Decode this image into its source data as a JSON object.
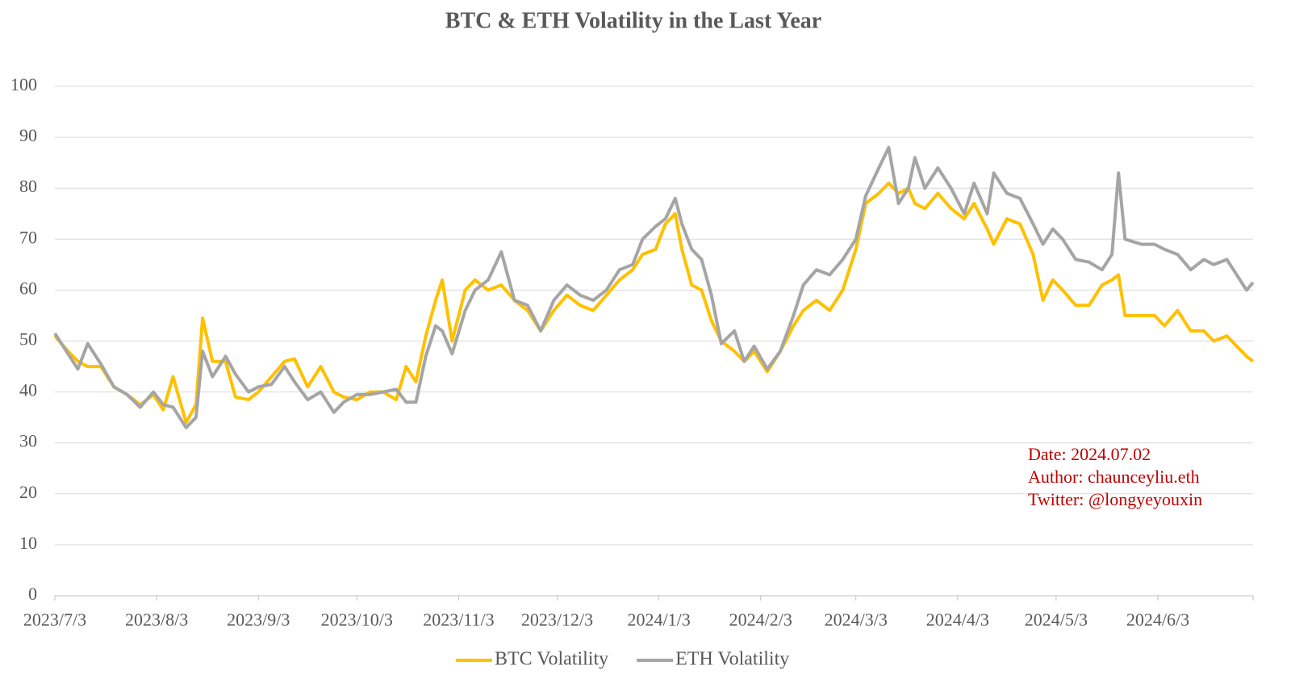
{
  "chart_data": {
    "type": "line",
    "title": "BTC & ETH Volatility in the Last Year",
    "x": [
      "2023/7/3",
      "2023/7/7",
      "2023/7/10",
      "2023/7/13",
      "2023/7/17",
      "2023/7/21",
      "2023/7/25",
      "2023/7/29",
      "2023/8/2",
      "2023/8/5",
      "2023/8/8",
      "2023/8/12",
      "2023/8/15",
      "2023/8/17",
      "2023/8/20",
      "2023/8/24",
      "2023/8/27",
      "2023/8/31",
      "2023/9/3",
      "2023/9/7",
      "2023/9/11",
      "2023/9/14",
      "2023/9/18",
      "2023/9/22",
      "2023/9/26",
      "2023/9/29",
      "2023/10/3",
      "2023/10/7",
      "2023/10/11",
      "2023/10/15",
      "2023/10/18",
      "2023/10/21",
      "2023/10/24",
      "2023/10/27",
      "2023/10/29",
      "2023/11/1",
      "2023/11/5",
      "2023/11/8",
      "2023/11/12",
      "2023/11/16",
      "2023/11/20",
      "2023/11/24",
      "2023/11/28",
      "2023/12/2",
      "2023/12/6",
      "2023/12/10",
      "2023/12/14",
      "2023/12/18",
      "2023/12/22",
      "2023/12/26",
      "2023/12/29",
      "2024/1/2",
      "2024/1/5",
      "2024/1/8",
      "2024/1/10",
      "2024/1/13",
      "2024/1/16",
      "2024/1/19",
      "2024/1/22",
      "2024/1/26",
      "2024/1/29",
      "2024/2/1",
      "2024/2/5",
      "2024/2/9",
      "2024/2/13",
      "2024/2/16",
      "2024/2/20",
      "2024/2/24",
      "2024/2/28",
      "2024/3/3",
      "2024/3/6",
      "2024/3/10",
      "2024/3/13",
      "2024/3/16",
      "2024/3/19",
      "2024/3/21",
      "2024/3/24",
      "2024/3/28",
      "2024/4/1",
      "2024/4/5",
      "2024/4/8",
      "2024/4/12",
      "2024/4/14",
      "2024/4/18",
      "2024/4/22",
      "2024/4/26",
      "2024/4/29",
      "2024/5/2",
      "2024/5/5",
      "2024/5/9",
      "2024/5/13",
      "2024/5/17",
      "2024/5/20",
      "2024/5/22",
      "2024/5/24",
      "2024/5/29",
      "2024/6/2",
      "2024/6/5",
      "2024/6/9",
      "2024/6/13",
      "2024/6/17",
      "2024/6/20",
      "2024/6/24",
      "2024/6/27",
      "2024/6/30",
      "2024/7/2"
    ],
    "series": [
      {
        "name": "BTC Volatility",
        "color": "#ffc000",
        "values": [
          51,
          48,
          46,
          45,
          45,
          41,
          39.5,
          37.5,
          39.5,
          36.5,
          43,
          34,
          37.5,
          54.5,
          46,
          46,
          39,
          38.5,
          40,
          43,
          46,
          46.5,
          41,
          45,
          40,
          39,
          38.5,
          40,
          40,
          38.5,
          45,
          42,
          51,
          58,
          62,
          50,
          60,
          62,
          60,
          61,
          58,
          56,
          52,
          56,
          59,
          57,
          56,
          59,
          62,
          64,
          67,
          68,
          73,
          75,
          68,
          61,
          60,
          54,
          50,
          48,
          46,
          48,
          44,
          48,
          53,
          56,
          58,
          56,
          60,
          68,
          77,
          79,
          81,
          79,
          80,
          77,
          76,
          79,
          76,
          74,
          77,
          72,
          69,
          74,
          73,
          67,
          58,
          62,
          60,
          57,
          57,
          61,
          62,
          63,
          55,
          55,
          55,
          53,
          56,
          52,
          52,
          50,
          51,
          49,
          47,
          46
        ]
      },
      {
        "name": "ETH Volatility",
        "color": "#a5a5a5",
        "values": [
          51.5,
          47.5,
          44.5,
          49.5,
          45.5,
          41,
          39.5,
          37,
          40,
          37.5,
          37,
          33,
          35,
          48,
          43,
          47,
          43.5,
          40,
          41,
          41.5,
          45,
          42,
          38.5,
          40,
          36,
          38,
          39.5,
          39.5,
          40,
          40.5,
          38,
          38,
          47,
          53,
          52,
          47.5,
          56,
          60,
          62,
          67.5,
          58,
          57,
          52,
          58,
          61,
          59,
          58,
          60,
          64,
          65,
          70,
          72.5,
          74,
          78,
          73,
          68,
          66,
          59,
          49.5,
          52,
          46,
          49,
          44.5,
          48,
          55,
          61,
          64,
          63,
          66,
          70,
          78.5,
          84,
          88,
          77,
          80,
          86,
          80,
          84,
          80,
          75,
          81,
          75,
          83,
          79,
          78,
          73,
          69,
          72,
          70,
          66,
          65.5,
          64,
          67,
          83,
          70,
          69,
          69,
          68,
          67,
          64,
          66,
          65,
          66,
          63,
          60,
          61.5
        ]
      }
    ],
    "xlim": [
      "2023/7/3",
      "2024/7/2"
    ],
    "xticks": [
      "2023/7/3",
      "2023/8/3",
      "2023/9/3",
      "2023/10/3",
      "2023/11/3",
      "2023/12/3",
      "2024/1/3",
      "2024/2/3",
      "2024/3/3",
      "2024/4/3",
      "2024/5/3",
      "2024/6/3"
    ],
    "ylim": [
      0,
      100
    ],
    "yticks": [
      0,
      10,
      20,
      30,
      40,
      50,
      60,
      70,
      80,
      90,
      100
    ],
    "grid": true,
    "legend": "bottom",
    "annotations": [
      "Date: 2024.07.02",
      "Author: chaunceyliu.eth",
      "Twitter: @longyeyouxin"
    ]
  }
}
